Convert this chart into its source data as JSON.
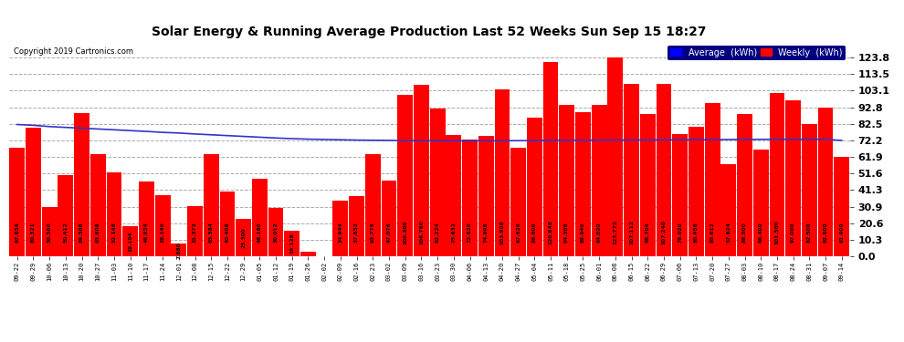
{
  "title": "Solar Energy & Running Average Production Last 52 Weeks Sun Sep 15 18:27",
  "copyright": "Copyright 2019 Cartronics.com",
  "ylabel_right_ticks": [
    0.0,
    10.3,
    20.6,
    30.9,
    41.3,
    51.6,
    61.9,
    72.2,
    82.5,
    92.8,
    103.1,
    113.5,
    123.8
  ],
  "bar_color": "#ff0000",
  "avg_line_color": "#3333cc",
  "background_color": "#ffffff",
  "plot_bg_color": "#ffffff",
  "grid_color": "#aaaaaa",
  "legend_avg_color": "#0000ff",
  "legend_weekly_color": "#ff0000",
  "categories": [
    "09-22",
    "09-29",
    "10-06",
    "10-13",
    "10-20",
    "10-27",
    "11-03",
    "11-10",
    "11-17",
    "11-24",
    "12-01",
    "12-08",
    "12-15",
    "12-22",
    "12-29",
    "01-05",
    "01-12",
    "01-19",
    "01-26",
    "02-02",
    "02-09",
    "02-16",
    "02-23",
    "03-02",
    "03-09",
    "03-16",
    "03-23",
    "03-30",
    "04-06",
    "04-13",
    "04-20",
    "04-27",
    "05-04",
    "05-11",
    "05-18",
    "05-25",
    "06-01",
    "06-08",
    "06-15",
    "06-22",
    "06-29",
    "07-06",
    "07-13",
    "07-20",
    "07-27",
    "08-03",
    "08-10",
    "08-17",
    "08-24",
    "08-31",
    "09-07",
    "09-14"
  ],
  "weekly_values": [
    67.856,
    80.321,
    30.56,
    50.412,
    89.308,
    63.808,
    52.148,
    19.104,
    46.924,
    38.14,
    7.88,
    31.372,
    63.584,
    40.408,
    23.3,
    48.16,
    30.012,
    16.128,
    3.012,
    0.0,
    34.944,
    37.852,
    63.776,
    47.076,
    100.309,
    106.76,
    92.224,
    75.632,
    72.62,
    74.908,
    103.908,
    67.62,
    86.6,
    120.848,
    94.208,
    89.94,
    94.02,
    123.772,
    107.112,
    88.704,
    107.24,
    76.02,
    80.456,
    95.612,
    57.624,
    88.5,
    66.4,
    101.5,
    97.0,
    82.5,
    92.8,
    61.9
  ],
  "avg_values": [
    82.1,
    81.6,
    80.8,
    80.3,
    79.8,
    79.3,
    78.8,
    78.3,
    77.8,
    77.2,
    76.8,
    76.2,
    75.7,
    75.2,
    74.7,
    74.2,
    73.7,
    73.3,
    73.0,
    72.8,
    72.6,
    72.4,
    72.3,
    72.2,
    72.1,
    72.05,
    72.0,
    71.95,
    71.95,
    72.0,
    72.0,
    72.05,
    72.1,
    72.2,
    72.25,
    72.3,
    72.35,
    72.4,
    72.45,
    72.5,
    72.55,
    72.6,
    72.65,
    72.7,
    72.75,
    72.8,
    72.85,
    72.9,
    72.9,
    72.9,
    72.9,
    72.2
  ],
  "ylim": [
    0,
    134
  ],
  "figsize": [
    9.9,
    3.75
  ],
  "dpi": 100
}
